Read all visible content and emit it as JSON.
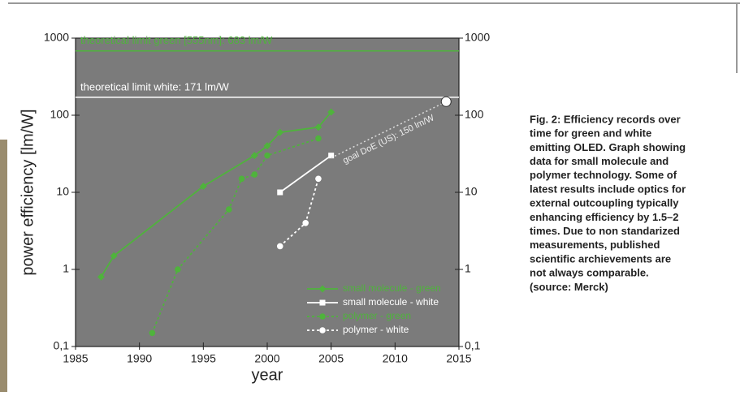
{
  "chart_data": {
    "type": "line",
    "xlabel": "year",
    "ylabel": "power efficiency [lm/W]",
    "log_y": true,
    "xlim": [
      1985,
      2015
    ],
    "xticks": [
      1985,
      1990,
      1995,
      2000,
      2005,
      2010,
      2015
    ],
    "ylim": [
      0.1,
      1000
    ],
    "yticks": [
      {
        "value": 0.1,
        "label": "0,1"
      },
      1,
      10,
      100,
      1000
    ],
    "hlines": [
      {
        "value": 683,
        "label": "theoretical limit green [555nm]: 683 lm/W",
        "color": "#4fb33c"
      },
      {
        "value": 171,
        "label": "theoretical limit white: 171 lm/W",
        "color": "#ffffff"
      }
    ],
    "series": [
      {
        "name": "small molecule - green",
        "color": "#4fb33c",
        "dash": "solid",
        "marker": "diamond",
        "x": [
          1987,
          1988,
          1995,
          1999,
          2000,
          2001,
          2004,
          2005
        ],
        "values": [
          0.8,
          1.5,
          12,
          30,
          40,
          60,
          70,
          110
        ]
      },
      {
        "name": "small molecule - white",
        "color": "#ffffff",
        "dash": "solid",
        "marker": "square",
        "x": [
          2001,
          2005
        ],
        "values": [
          10,
          30
        ]
      },
      {
        "name": "polymer - green",
        "color": "#4fb33c",
        "dash": "dotted",
        "marker": "circle",
        "x": [
          1991,
          1993,
          1997,
          1998,
          1999,
          2000,
          2004
        ],
        "values": [
          0.15,
          1,
          6,
          15,
          17,
          30,
          50
        ]
      },
      {
        "name": "polymer - white",
        "color": "#ffffff",
        "dash": "dotted",
        "marker": "circle",
        "x": [
          2001,
          2003,
          2004
        ],
        "values": [
          2,
          4,
          15
        ]
      }
    ],
    "goal": {
      "label": "goal DoE (US): 150 lm/W",
      "x": [
        2005,
        2014
      ],
      "values": [
        28,
        150
      ]
    },
    "legend": "lower right"
  },
  "caption": [
    "Fig. 2: Efficiency records over",
    "time for green and white",
    "emitting OLED. Graph showing",
    "data for small molecule and",
    "polymer technology. Some of",
    "latest results include optics for",
    "external outcoupling typically",
    "enhancing efficiency by 1.5–2",
    "times. Due to non standarized",
    "measurements, published",
    "scientific archievements are",
    "not always comparable.",
    "(source: Merck)"
  ]
}
